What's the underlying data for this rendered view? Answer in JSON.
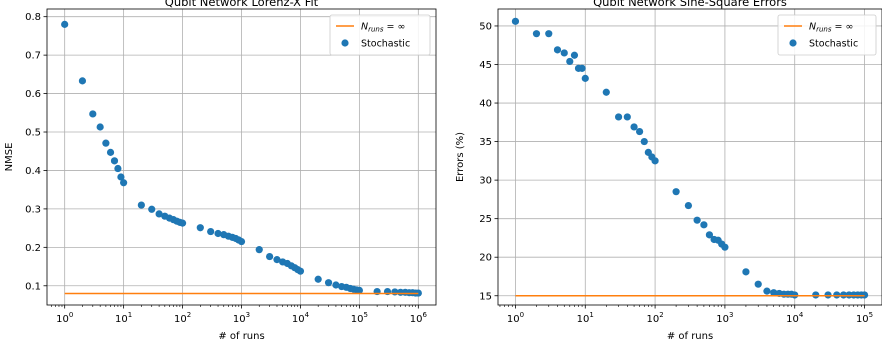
{
  "chart_data": [
    {
      "type": "scatter",
      "title": "Qubit Network Lorenz-X Fit",
      "xlabel": "# of runs",
      "ylabel": "NMSE",
      "xscale": "log",
      "xlim": [
        1,
        1000000
      ],
      "ylim": [
        0.05,
        0.82
      ],
      "xticks": [
        {
          "value": 1,
          "base": "10",
          "exp": "0"
        },
        {
          "value": 10,
          "base": "10",
          "exp": "1"
        },
        {
          "value": 100,
          "base": "10",
          "exp": "2"
        },
        {
          "value": 1000,
          "base": "10",
          "exp": "3"
        },
        {
          "value": 10000,
          "base": "10",
          "exp": "4"
        },
        {
          "value": 100000,
          "base": "10",
          "exp": "5"
        },
        {
          "value": 1000000,
          "base": "10",
          "exp": "6"
        }
      ],
      "yticks": [
        {
          "value": 0.1,
          "label": "0.1"
        },
        {
          "value": 0.2,
          "label": "0.2"
        },
        {
          "value": 0.3,
          "label": "0.3"
        },
        {
          "value": 0.4,
          "label": "0.4"
        },
        {
          "value": 0.5,
          "label": "0.5"
        },
        {
          "value": 0.6,
          "label": "0.6"
        },
        {
          "value": 0.7,
          "label": "0.7"
        },
        {
          "value": 0.8,
          "label": "0.8"
        }
      ],
      "grid": true,
      "legend_position": "top-right",
      "series": [
        {
          "name": "Stochastic",
          "kind": "scatter",
          "color": "#1f77b4",
          "x": [
            1,
            2,
            3,
            4,
            5,
            6,
            7,
            8,
            9,
            10,
            20,
            30,
            40,
            50,
            60,
            70,
            80,
            90,
            100,
            200,
            300,
            400,
            500,
            600,
            700,
            800,
            900,
            1000,
            2000,
            3000,
            4000,
            5000,
            6000,
            7000,
            8000,
            9000,
            10000,
            20000,
            30000,
            40000,
            50000,
            60000,
            70000,
            80000,
            90000,
            100000,
            200000,
            300000,
            400000,
            500000,
            600000,
            700000,
            800000,
            900000,
            1000000
          ],
          "y": [
            0.78,
            0.633,
            0.547,
            0.513,
            0.471,
            0.447,
            0.425,
            0.405,
            0.383,
            0.368,
            0.31,
            0.299,
            0.287,
            0.281,
            0.276,
            0.272,
            0.268,
            0.265,
            0.263,
            0.251,
            0.241,
            0.236,
            0.233,
            0.229,
            0.226,
            0.223,
            0.219,
            0.215,
            0.194,
            0.176,
            0.168,
            0.162,
            0.158,
            0.152,
            0.147,
            0.142,
            0.138,
            0.117,
            0.108,
            0.102,
            0.098,
            0.096,
            0.093,
            0.091,
            0.089,
            0.088,
            0.085,
            0.085,
            0.084,
            0.083,
            0.083,
            0.082,
            0.082,
            0.081,
            0.081
          ]
        },
        {
          "name": "$N_{runs} = \\infty$",
          "kind": "line",
          "color": "#ff7f0e",
          "x": [
            1,
            1000000
          ],
          "y": [
            0.08,
            0.08
          ]
        }
      ],
      "legend": [
        {
          "label_main": "N",
          "label_sub": "runs",
          "label_tail": " = ∞",
          "kind": "line",
          "color": "#ff7f0e"
        },
        {
          "label_main": "Stochastic",
          "label_sub": "",
          "label_tail": "",
          "kind": "scatter",
          "color": "#1f77b4"
        }
      ]
    },
    {
      "type": "scatter",
      "title": "Qubit Network Sine-Square Errors",
      "xlabel": "# of runs",
      "ylabel": "Errors (%)",
      "xscale": "log",
      "xlim": [
        1,
        100000
      ],
      "ylim": [
        13.8,
        52.2
      ],
      "xticks": [
        {
          "value": 1,
          "base": "10",
          "exp": "0"
        },
        {
          "value": 10,
          "base": "10",
          "exp": "1"
        },
        {
          "value": 100,
          "base": "10",
          "exp": "2"
        },
        {
          "value": 1000,
          "base": "10",
          "exp": "3"
        },
        {
          "value": 10000,
          "base": "10",
          "exp": "4"
        },
        {
          "value": 100000,
          "base": "10",
          "exp": "5"
        }
      ],
      "yticks": [
        {
          "value": 15,
          "label": "15"
        },
        {
          "value": 20,
          "label": "20"
        },
        {
          "value": 25,
          "label": "25"
        },
        {
          "value": 30,
          "label": "30"
        },
        {
          "value": 35,
          "label": "35"
        },
        {
          "value": 40,
          "label": "40"
        },
        {
          "value": 45,
          "label": "45"
        },
        {
          "value": 50,
          "label": "50"
        }
      ],
      "grid": true,
      "legend_position": "top-right",
      "series": [
        {
          "name": "Stochastic",
          "kind": "scatter",
          "color": "#1f77b4",
          "x": [
            1,
            2,
            3,
            4,
            5,
            6,
            7,
            8,
            9,
            10,
            20,
            30,
            40,
            50,
            60,
            70,
            80,
            90,
            100,
            200,
            300,
            400,
            500,
            600,
            700,
            800,
            900,
            1000,
            2000,
            3000,
            4000,
            5000,
            6000,
            7000,
            8000,
            9000,
            10000,
            20000,
            30000,
            40000,
            50000,
            60000,
            70000,
            80000,
            90000,
            100000
          ],
          "y": [
            50.6,
            49.0,
            49.0,
            46.9,
            46.5,
            45.4,
            46.2,
            44.5,
            44.5,
            43.2,
            41.4,
            38.2,
            38.2,
            36.9,
            36.3,
            35.0,
            33.6,
            33.0,
            32.5,
            28.5,
            26.7,
            24.8,
            24.2,
            22.9,
            22.3,
            22.2,
            21.7,
            21.3,
            18.1,
            16.5,
            15.6,
            15.4,
            15.3,
            15.2,
            15.2,
            15.2,
            15.1,
            15.1,
            15.1,
            15.1,
            15.1,
            15.1,
            15.1,
            15.1,
            15.1,
            15.1
          ]
        },
        {
          "name": "$N_{runs} = \\infty$",
          "kind": "line",
          "color": "#ff7f0e",
          "x": [
            1,
            100000
          ],
          "y": [
            15.0,
            15.0
          ]
        }
      ],
      "legend": [
        {
          "label_main": "N",
          "label_sub": "runs",
          "label_tail": " = ∞",
          "kind": "line",
          "color": "#ff7f0e"
        },
        {
          "label_main": "Stochastic",
          "label_sub": "",
          "label_tail": "",
          "kind": "scatter",
          "color": "#1f77b4"
        }
      ]
    }
  ]
}
